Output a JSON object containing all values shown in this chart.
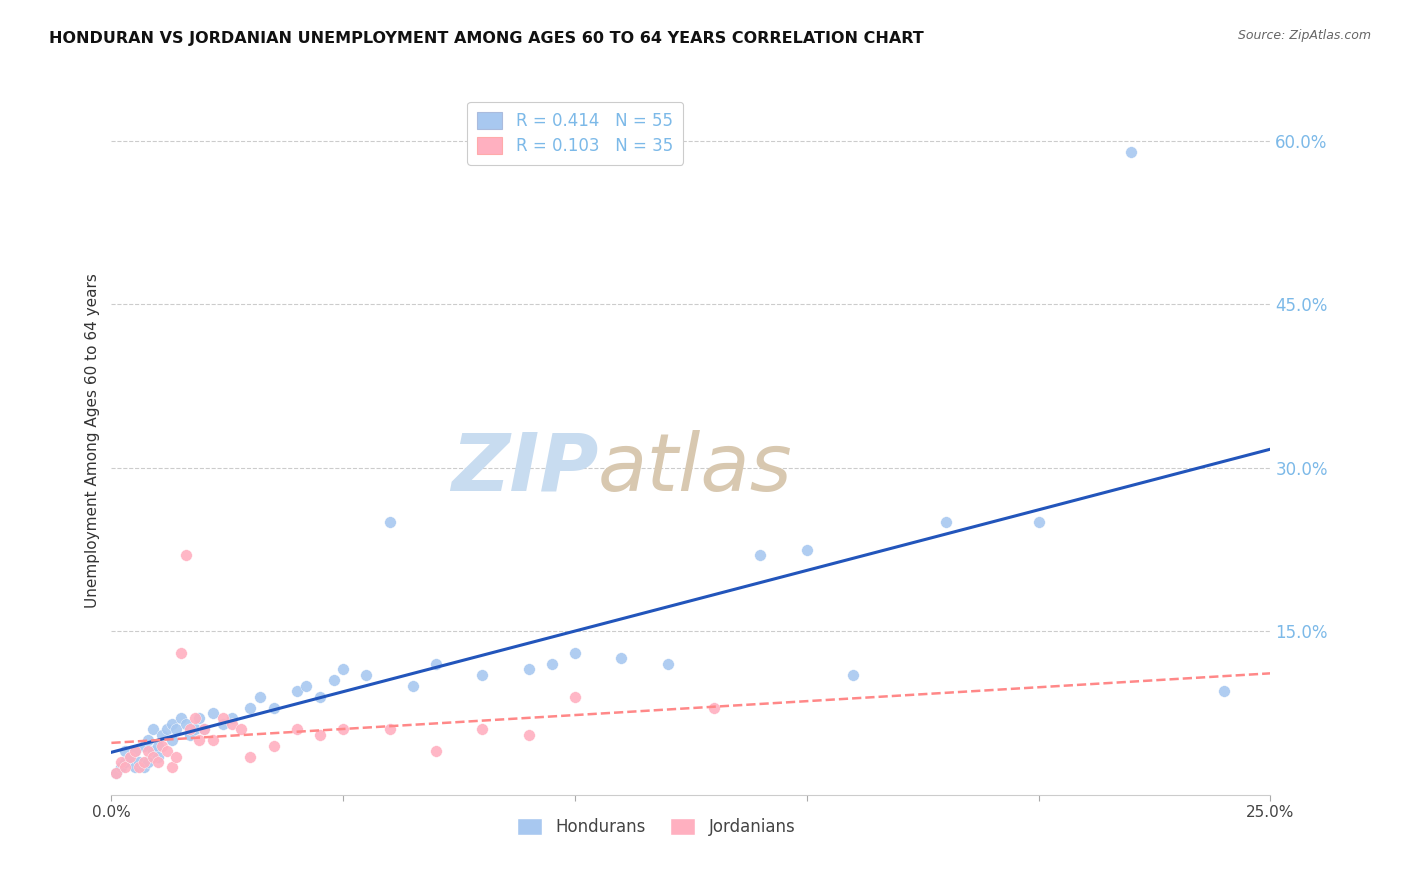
{
  "title": "HONDURAN VS JORDANIAN UNEMPLOYMENT AMONG AGES 60 TO 64 YEARS CORRELATION CHART",
  "source": "Source: ZipAtlas.com",
  "ylabel": "Unemployment Among Ages 60 to 64 years",
  "xlim": [
    0.0,
    0.25
  ],
  "ylim": [
    0.0,
    0.65
  ],
  "xtick_positions": [
    0.0,
    0.05,
    0.1,
    0.15,
    0.2,
    0.25
  ],
  "xticklabels": [
    "0.0%",
    "",
    "",
    "",
    "",
    "25.0%"
  ],
  "ytick_positions": [
    0.15,
    0.3,
    0.45,
    0.6
  ],
  "ytick_labels": [
    "15.0%",
    "30.0%",
    "45.0%",
    "60.0%"
  ],
  "honduran_R": "0.414",
  "honduran_N": "55",
  "jordanian_R": "0.103",
  "jordanian_N": "35",
  "blue_scatter_color": "#A8C8F0",
  "pink_scatter_color": "#FFB0C0",
  "blue_line_color": "#2255BB",
  "pink_line_color": "#FF8888",
  "axis_tick_color": "#7CB9E8",
  "grid_color": "#CCCCCC",
  "background_color": "#FFFFFF",
  "watermark_zip_color": "#C8DCF0",
  "watermark_atlas_color": "#D8C8B0",
  "honduran_x": [
    0.001,
    0.002,
    0.003,
    0.003,
    0.004,
    0.005,
    0.005,
    0.006,
    0.007,
    0.007,
    0.008,
    0.008,
    0.009,
    0.009,
    0.01,
    0.01,
    0.011,
    0.012,
    0.013,
    0.013,
    0.014,
    0.015,
    0.016,
    0.017,
    0.018,
    0.019,
    0.02,
    0.022,
    0.024,
    0.026,
    0.03,
    0.032,
    0.035,
    0.04,
    0.042,
    0.045,
    0.048,
    0.05,
    0.055,
    0.06,
    0.065,
    0.07,
    0.08,
    0.09,
    0.095,
    0.1,
    0.11,
    0.12,
    0.14,
    0.15,
    0.16,
    0.18,
    0.2,
    0.22,
    0.24
  ],
  "honduran_y": [
    0.02,
    0.025,
    0.03,
    0.04,
    0.035,
    0.025,
    0.04,
    0.03,
    0.025,
    0.045,
    0.03,
    0.05,
    0.04,
    0.06,
    0.045,
    0.035,
    0.055,
    0.06,
    0.05,
    0.065,
    0.06,
    0.07,
    0.065,
    0.055,
    0.06,
    0.07,
    0.06,
    0.075,
    0.065,
    0.07,
    0.08,
    0.09,
    0.08,
    0.095,
    0.1,
    0.09,
    0.105,
    0.115,
    0.11,
    0.25,
    0.1,
    0.12,
    0.11,
    0.115,
    0.12,
    0.13,
    0.125,
    0.12,
    0.22,
    0.225,
    0.11,
    0.25,
    0.25,
    0.59,
    0.095
  ],
  "jordanian_x": [
    0.001,
    0.002,
    0.003,
    0.004,
    0.005,
    0.006,
    0.007,
    0.008,
    0.009,
    0.01,
    0.011,
    0.012,
    0.013,
    0.014,
    0.015,
    0.016,
    0.017,
    0.018,
    0.019,
    0.02,
    0.022,
    0.024,
    0.026,
    0.028,
    0.03,
    0.035,
    0.04,
    0.045,
    0.05,
    0.06,
    0.07,
    0.08,
    0.09,
    0.1,
    0.13
  ],
  "jordanian_y": [
    0.02,
    0.03,
    0.025,
    0.035,
    0.04,
    0.025,
    0.03,
    0.04,
    0.035,
    0.03,
    0.045,
    0.04,
    0.025,
    0.035,
    0.13,
    0.22,
    0.06,
    0.07,
    0.05,
    0.06,
    0.05,
    0.07,
    0.065,
    0.06,
    0.035,
    0.045,
    0.06,
    0.055,
    0.06,
    0.06,
    0.04,
    0.06,
    0.055,
    0.09,
    0.08
  ]
}
